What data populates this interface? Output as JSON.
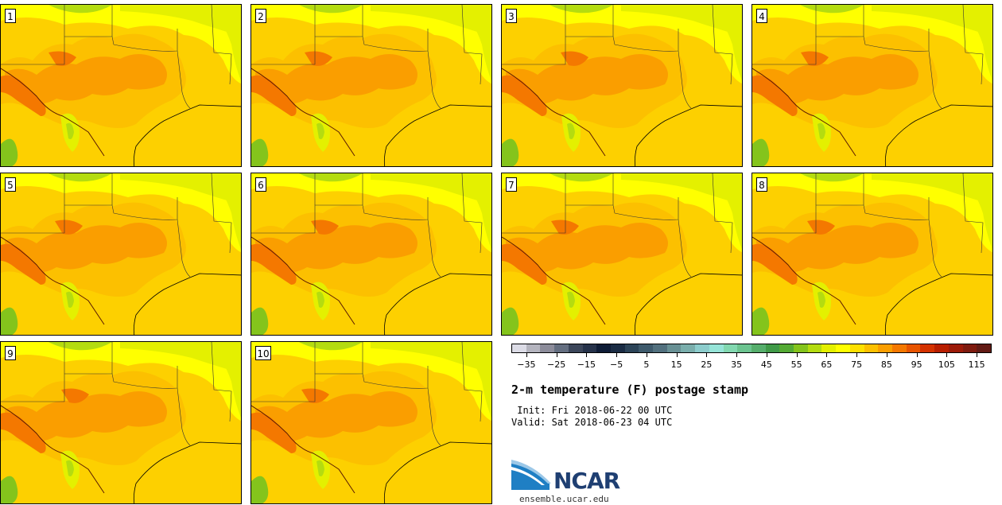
{
  "panels": [
    {
      "label": "1"
    },
    {
      "label": "2"
    },
    {
      "label": "3"
    },
    {
      "label": "4"
    },
    {
      "label": "5"
    },
    {
      "label": "6"
    },
    {
      "label": "7"
    },
    {
      "label": "8"
    },
    {
      "label": "9"
    },
    {
      "label": "10"
    }
  ],
  "colorbar": {
    "colors": [
      "#dcdce6",
      "#b4b4be",
      "#8c8c9a",
      "#646e80",
      "#3c465a",
      "#26324a",
      "#0e1c36",
      "#1a2c44",
      "#2c4458",
      "#3e5a6c",
      "#52707e",
      "#689094",
      "#7aaeac",
      "#8ccccc",
      "#96e4d8",
      "#82d8b0",
      "#6cc490",
      "#56ae6c",
      "#409a48",
      "#54aa34",
      "#84c41c",
      "#b4dc10",
      "#e4f000",
      "#ffff00",
      "#fee000",
      "#fcc000",
      "#fa9e00",
      "#f47800",
      "#e85400",
      "#d43200",
      "#b81e00",
      "#9c1a08",
      "#7e1a0e",
      "#621a14"
    ],
    "tick_labels": [
      "−35",
      "−25",
      "−15",
      "−5",
      "5",
      "15",
      "25",
      "35",
      "45",
      "55",
      "65",
      "75",
      "85",
      "95",
      "105",
      "115"
    ],
    "tick_values": [
      -35,
      -25,
      -15,
      -5,
      5,
      15,
      25,
      35,
      45,
      55,
      65,
      75,
      85,
      95,
      105,
      115
    ],
    "min": -40,
    "max": 120
  },
  "title": "2-m temperature (F) postage stamp",
  "init_line": " Init: Fri 2018-06-22 00 UTC",
  "valid_line": "Valid: Sat 2018-06-23 04 UTC",
  "logo_text": "NCAR",
  "url": "ensemble.ucar.edu"
}
